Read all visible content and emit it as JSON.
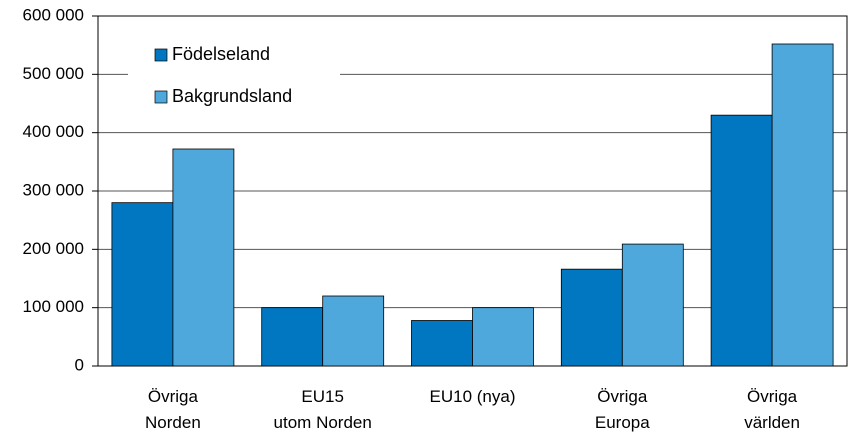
{
  "chart_data": {
    "type": "bar",
    "categories": [
      [
        "Övriga",
        "Norden"
      ],
      [
        "EU15",
        "utom Norden"
      ],
      [
        "EU10 (nya)"
      ],
      [
        "Övriga",
        "Europa"
      ],
      [
        "Övriga",
        "världen"
      ]
    ],
    "series": [
      {
        "name": "Födelseland",
        "color": "#0077c0",
        "values": [
          280000,
          100000,
          78000,
          166000,
          430000
        ]
      },
      {
        "name": "Bakgrundsland",
        "color": "#4ea8dc",
        "values": [
          372000,
          120000,
          100000,
          209000,
          552000
        ]
      }
    ],
    "ylim": [
      0,
      600000
    ],
    "yticks": [
      0,
      {
        "value": 100000,
        "label": "100 000"
      },
      {
        "value": 200000,
        "label": "200 000"
      },
      {
        "value": 300000,
        "label": "300 000"
      },
      {
        "value": 400000,
        "label": "400 000"
      },
      {
        "value": 500000,
        "label": "500 000"
      },
      {
        "value": 600000,
        "label": "600 000"
      }
    ],
    "grid": true,
    "legend": "upper left"
  }
}
